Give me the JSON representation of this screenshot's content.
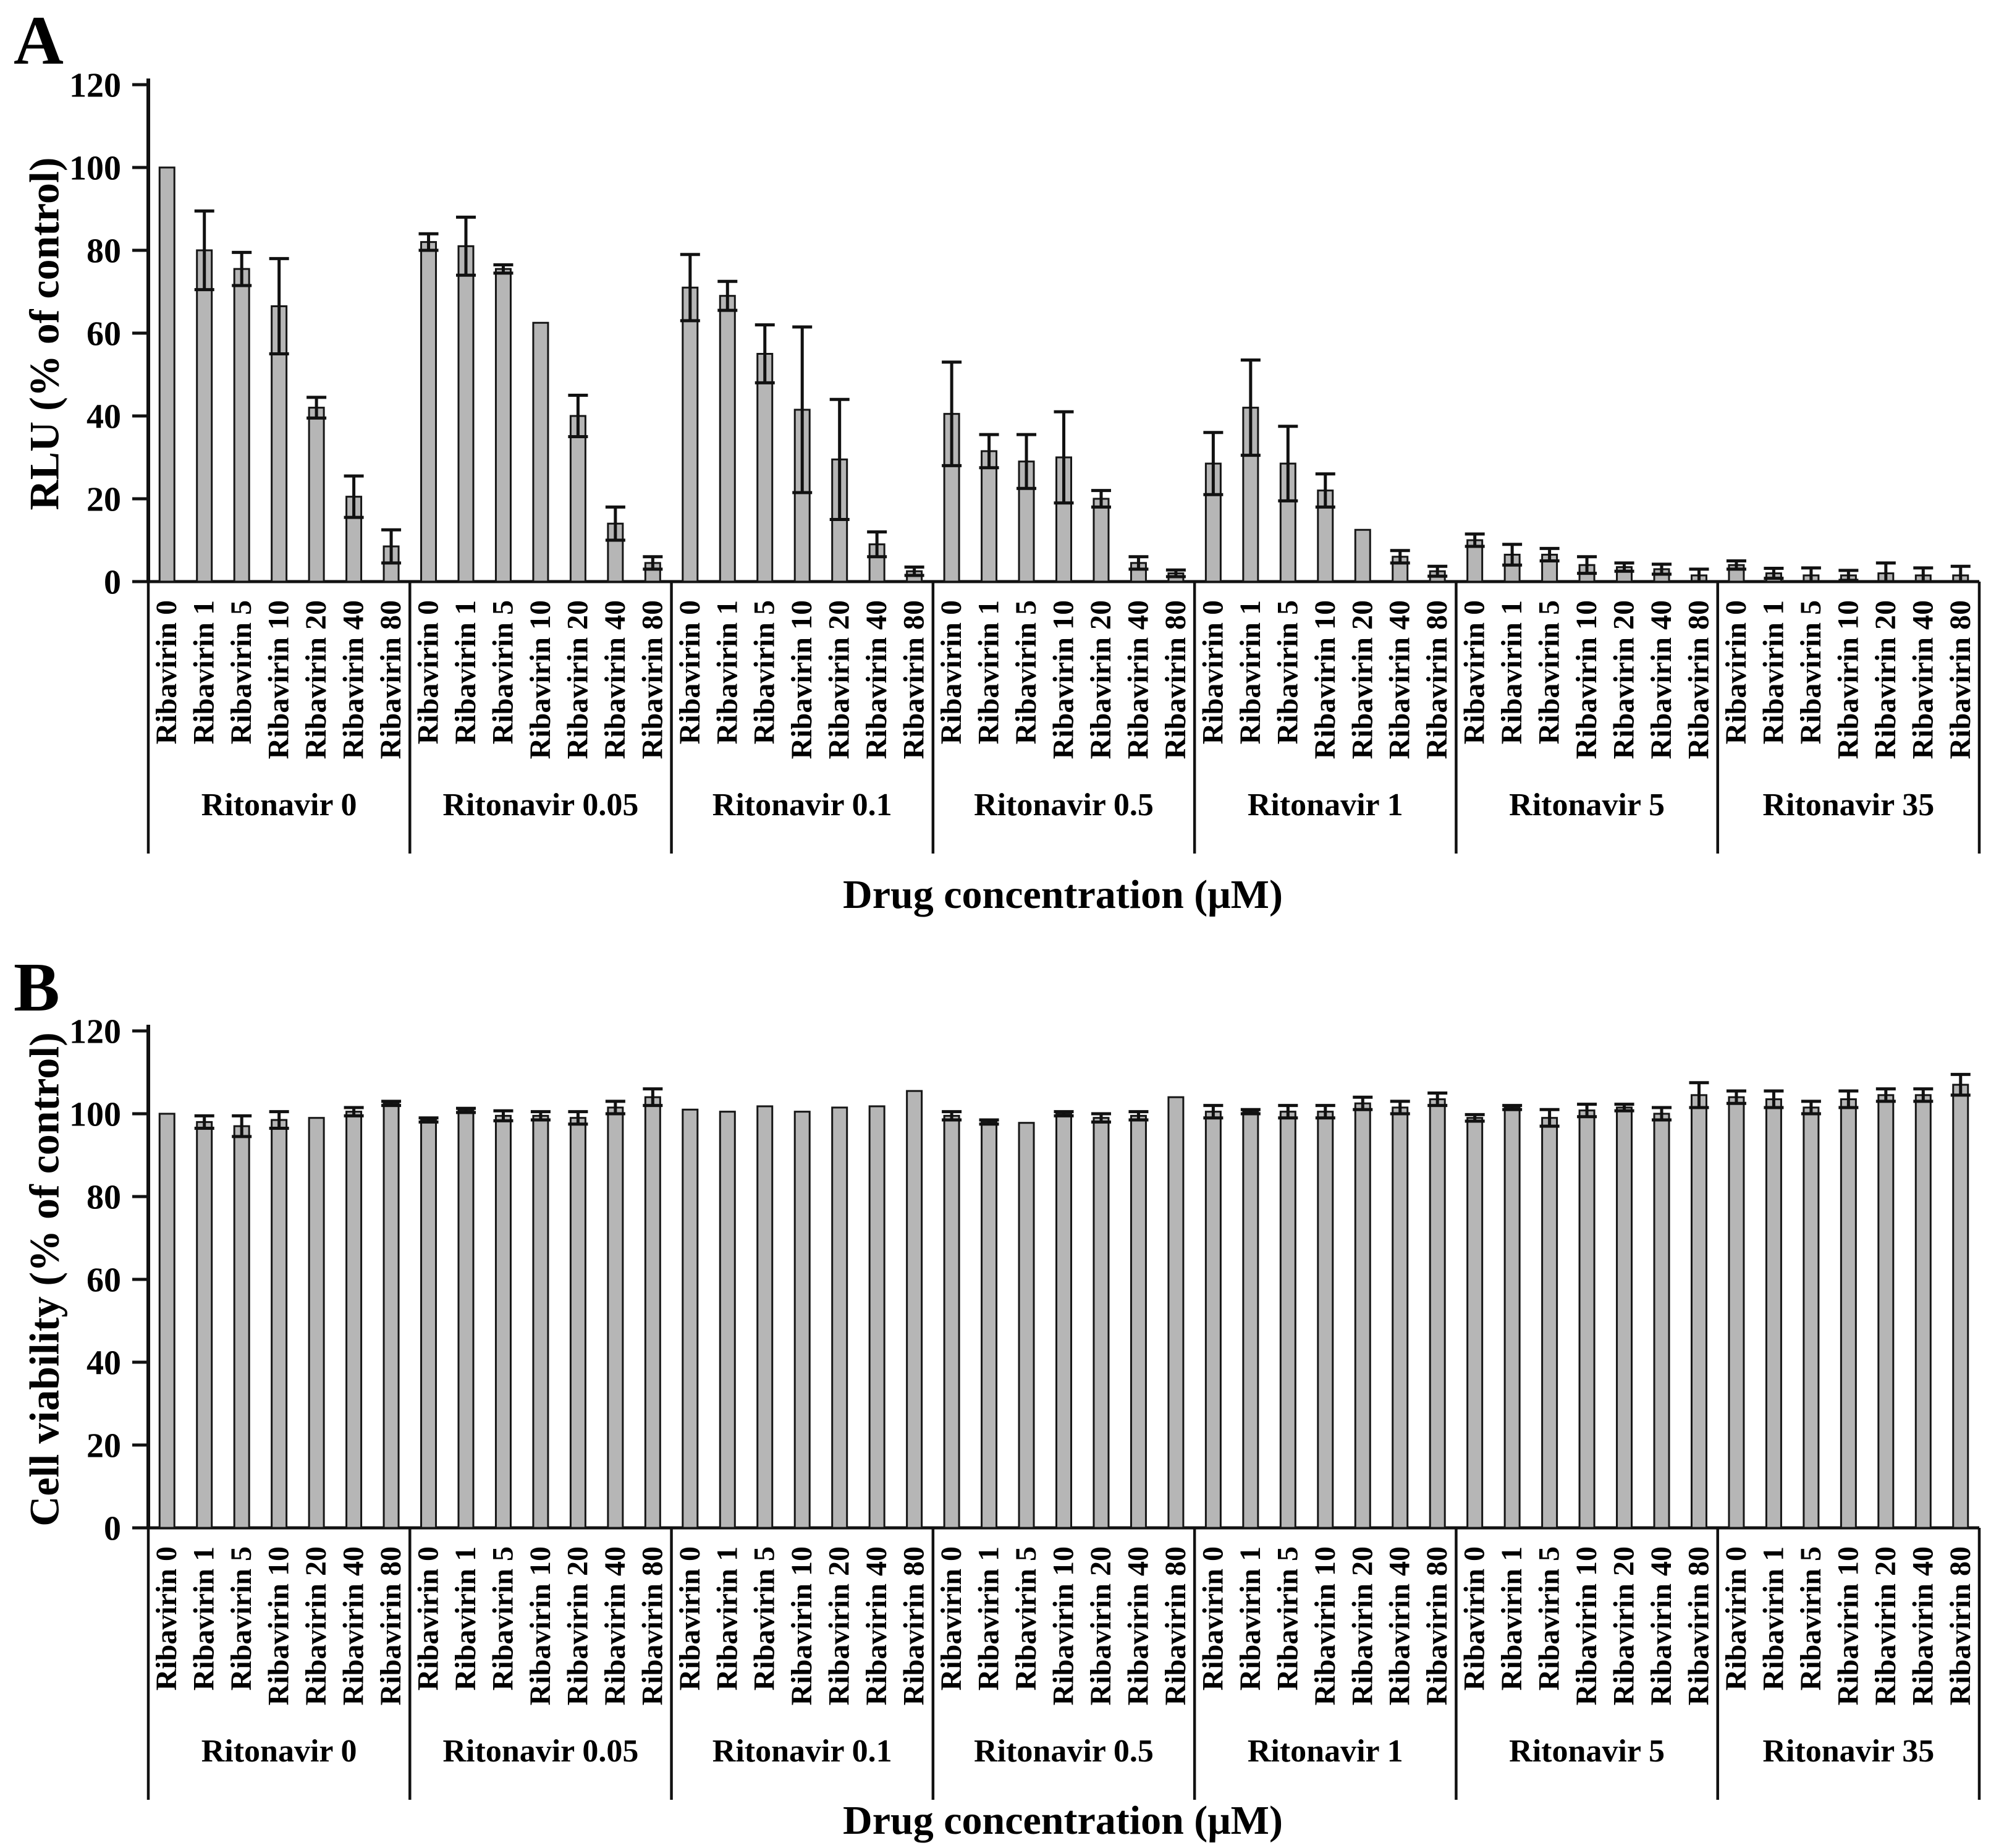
{
  "figure": {
    "panels": [
      {
        "letter": "A",
        "y_title": "RLU (% of control)",
        "x_title": "Drug concentration (μM)"
      },
      {
        "letter": "B",
        "y_title": "Cell viability (% of control)",
        "x_title": "Drug concentration (μM)"
      }
    ]
  },
  "style": {
    "bar_fill": "#b6b6b6",
    "bar_stroke": "#161616",
    "axis_color": "#111111",
    "text_color": "#000000",
    "background": "#ffffff"
  },
  "chart_data": [
    {
      "type": "bar",
      "panel": "A",
      "title": "",
      "ylabel": "RLU (% of control)",
      "xlabel": "Drug concentration (μM)",
      "ylim": [
        0,
        120
      ],
      "yticks": [
        0,
        20,
        40,
        60,
        80,
        100,
        120
      ],
      "grid": false,
      "legend": null,
      "error_bars": "symmetric",
      "categories_per_group": [
        "Ribavirin 0",
        "Ribavirin 1",
        "Ribavirin 5",
        "Ribavirin 10",
        "Ribavirin 20",
        "Ribavirin 40",
        "Ribavirin 80"
      ],
      "groups": [
        {
          "label": "Ritonavir 0",
          "values": [
            100,
            80,
            75.5,
            66.5,
            42,
            20.5,
            8.5
          ],
          "errors": [
            0,
            9.5,
            4,
            11.5,
            2.5,
            5,
            4
          ]
        },
        {
          "label": "Ritonavir 0.05",
          "values": [
            82,
            81,
            75.5,
            62.5,
            40,
            14,
            4.5
          ],
          "errors": [
            2,
            7,
            1,
            0,
            5,
            4,
            1.5
          ]
        },
        {
          "label": "Ritonavir 0.1",
          "values": [
            71,
            69,
            55,
            41.5,
            29.5,
            9,
            2.5
          ],
          "errors": [
            8,
            3.5,
            7,
            20,
            14.5,
            3,
            1
          ]
        },
        {
          "label": "Ritonavir 0.5",
          "values": [
            40.5,
            31.5,
            29,
            30,
            20,
            4.5,
            2
          ],
          "errors": [
            12.5,
            4,
            6.5,
            11,
            2,
            1.5,
            0.8
          ]
        },
        {
          "label": "Ritonavir 1",
          "values": [
            28.5,
            42,
            28.5,
            22,
            12.5,
            6,
            2.5
          ],
          "errors": [
            7.5,
            11.5,
            9,
            4,
            0,
            1.5,
            1.2
          ]
        },
        {
          "label": "Ritonavir 5",
          "values": [
            10,
            6.5,
            6.5,
            4,
            3.5,
            3,
            1.5
          ],
          "errors": [
            1.5,
            2.5,
            1.5,
            2,
            1,
            1.2,
            1.5
          ]
        },
        {
          "label": "Ritonavir 35",
          "values": [
            4,
            2,
            1.5,
            1.5,
            2,
            1.5,
            1.5
          ],
          "errors": [
            1,
            1.2,
            1.8,
            1.2,
            2.5,
            1.8,
            2.2
          ]
        }
      ]
    },
    {
      "type": "bar",
      "panel": "B",
      "title": "",
      "ylabel": "Cell viability (% of control)",
      "xlabel": "Drug concentration (μM)",
      "ylim": [
        0,
        120
      ],
      "yticks": [
        0,
        20,
        40,
        60,
        80,
        100,
        120
      ],
      "grid": false,
      "legend": null,
      "error_bars": "symmetric",
      "categories_per_group": [
        "Ribavirin 0",
        "Ribavirin 1",
        "Ribavirin 5",
        "Ribavirin 10",
        "Ribavirin 20",
        "Ribavirin 40",
        "Ribavirin 80"
      ],
      "groups": [
        {
          "label": "Ritonavir 0",
          "values": [
            100,
            98,
            97,
            98.5,
            99,
            100.5,
            102.5
          ],
          "errors": [
            0,
            1.5,
            2.5,
            2,
            0,
            1,
            0.5
          ]
        },
        {
          "label": "Ritonavir 0.05",
          "values": [
            98.5,
            100.8,
            99.5,
            99.5,
            99,
            101.5,
            104
          ],
          "errors": [
            0.5,
            0.5,
            1.2,
            1,
            1.5,
            1.5,
            2
          ]
        },
        {
          "label": "Ritonavir 0.1",
          "values": [
            101,
            100.5,
            101.8,
            100.5,
            101.5,
            101.8,
            105.5
          ],
          "errors": [
            0,
            0,
            0,
            0,
            0,
            0,
            0
          ]
        },
        {
          "label": "Ritonavir 0.5",
          "values": [
            99.5,
            98,
            97.8,
            100,
            99,
            99.5,
            104
          ],
          "errors": [
            1,
            0.5,
            0,
            0.5,
            1,
            1,
            0
          ]
        },
        {
          "label": "Ritonavir 1",
          "values": [
            100.5,
            100.5,
            100.5,
            100.5,
            102.5,
            101.5,
            103.5
          ],
          "errors": [
            1.5,
            0.5,
            1.5,
            1.5,
            1.5,
            1.5,
            1.5
          ]
        },
        {
          "label": "Ritonavir 5",
          "values": [
            99,
            101.5,
            99,
            100.8,
            101.5,
            100,
            104.5
          ],
          "errors": [
            0.8,
            0.5,
            2,
            1.5,
            0.8,
            1.5,
            3
          ]
        },
        {
          "label": "Ritonavir 35",
          "values": [
            104,
            103.5,
            101.5,
            103.5,
            104.5,
            104.5,
            107
          ],
          "errors": [
            1.5,
            2,
            1.5,
            2,
            1.5,
            1.5,
            2.5
          ]
        }
      ]
    }
  ]
}
